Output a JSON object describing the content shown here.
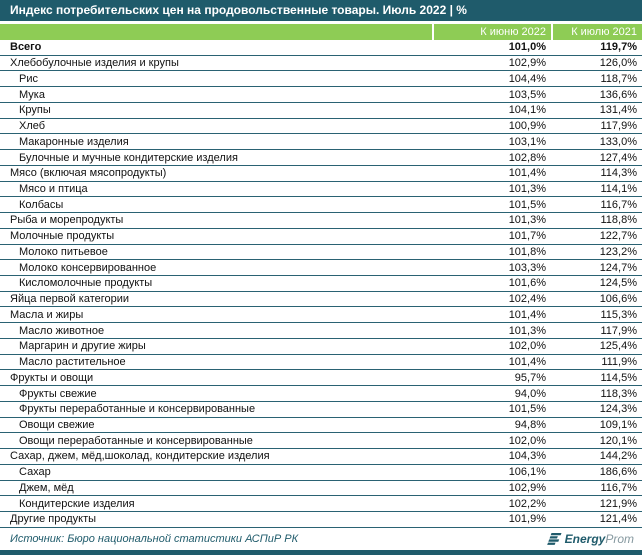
{
  "footer": {
    "source": "Источник: Бюро национальной статистики АСПиР РК",
    "logo_bold": "Energy",
    "logo_light": "Prom"
  },
  "colors": {
    "teal": "#1F5B6B",
    "green": "#8ECC55",
    "row_border": "#2A6273",
    "logo_light_text": "#85989F"
  },
  "chart_data": {
    "type": "table",
    "title": "Индекс потребительских цен на продовольственные товары. Июль 2022 | %",
    "columns": [
      "К июню 2022",
      "К июлю 2021"
    ],
    "rows": [
      {
        "label": "Всего",
        "to_june_2022": "101,0%",
        "to_july_2021": "119,7%",
        "indent": 0,
        "bold": true
      },
      {
        "label": "Хлебобулочные изделия и крупы",
        "to_june_2022": "102,9%",
        "to_july_2021": "126,0%",
        "indent": 0,
        "bold": false
      },
      {
        "label": "Рис",
        "to_june_2022": "104,4%",
        "to_july_2021": "118,7%",
        "indent": 1,
        "bold": false
      },
      {
        "label": "Мука",
        "to_june_2022": "103,5%",
        "to_july_2021": "136,6%",
        "indent": 1,
        "bold": false
      },
      {
        "label": "Крупы",
        "to_june_2022": "104,1%",
        "to_july_2021": "131,4%",
        "indent": 1,
        "bold": false
      },
      {
        "label": "Хлеб",
        "to_june_2022": "100,9%",
        "to_july_2021": "117,9%",
        "indent": 1,
        "bold": false
      },
      {
        "label": "Макаронные изделия",
        "to_june_2022": "103,1%",
        "to_july_2021": "133,0%",
        "indent": 1,
        "bold": false
      },
      {
        "label": "Булочные и мучные кондитерские изделия",
        "to_june_2022": "102,8%",
        "to_july_2021": "127,4%",
        "indent": 1,
        "bold": false
      },
      {
        "label": "Мясо (включая мясопродукты)",
        "to_june_2022": "101,4%",
        "to_july_2021": "114,3%",
        "indent": 0,
        "bold": false
      },
      {
        "label": "Мясо и птица",
        "to_june_2022": "101,3%",
        "to_july_2021": "114,1%",
        "indent": 1,
        "bold": false
      },
      {
        "label": "Колбасы",
        "to_june_2022": "101,5%",
        "to_july_2021": "116,7%",
        "indent": 1,
        "bold": false
      },
      {
        "label": "Рыба и морепродукты",
        "to_june_2022": "101,3%",
        "to_july_2021": "118,8%",
        "indent": 0,
        "bold": false
      },
      {
        "label": "Молочные продукты",
        "to_june_2022": "101,7%",
        "to_july_2021": "122,7%",
        "indent": 0,
        "bold": false
      },
      {
        "label": "Молоко питьевое",
        "to_june_2022": "101,8%",
        "to_july_2021": "123,2%",
        "indent": 1,
        "bold": false
      },
      {
        "label": "Молоко консервированное",
        "to_june_2022": "103,3%",
        "to_july_2021": "124,7%",
        "indent": 1,
        "bold": false
      },
      {
        "label": "Кисломолочные продукты",
        "to_june_2022": "101,6%",
        "to_july_2021": "124,5%",
        "indent": 1,
        "bold": false
      },
      {
        "label": "Яйца первой категории",
        "to_june_2022": "102,4%",
        "to_july_2021": "106,6%",
        "indent": 0,
        "bold": false
      },
      {
        "label": "Масла и жиры",
        "to_june_2022": "101,4%",
        "to_july_2021": "115,3%",
        "indent": 0,
        "bold": false
      },
      {
        "label": "Масло животное",
        "to_june_2022": "101,3%",
        "to_july_2021": "117,9%",
        "indent": 1,
        "bold": false
      },
      {
        "label": "Маргарин и другие жиры",
        "to_june_2022": "102,0%",
        "to_july_2021": "125,4%",
        "indent": 1,
        "bold": false
      },
      {
        "label": "Масло растительное",
        "to_june_2022": "101,4%",
        "to_july_2021": "111,9%",
        "indent": 1,
        "bold": false
      },
      {
        "label": "Фрукты и овощи",
        "to_june_2022": "95,7%",
        "to_july_2021": "114,5%",
        "indent": 0,
        "bold": false
      },
      {
        "label": "Фрукты свежие",
        "to_june_2022": "94,0%",
        "to_july_2021": "118,3%",
        "indent": 1,
        "bold": false
      },
      {
        "label": "Фрукты переработанные и консервированные",
        "to_june_2022": "101,5%",
        "to_july_2021": "124,3%",
        "indent": 1,
        "bold": false
      },
      {
        "label": "Овощи свежие",
        "to_june_2022": "94,8%",
        "to_july_2021": "109,1%",
        "indent": 1,
        "bold": false
      },
      {
        "label": "Овощи переработанные и консервированные",
        "to_june_2022": "102,0%",
        "to_july_2021": "120,1%",
        "indent": 1,
        "bold": false
      },
      {
        "label": "Сахар, джем, мёд,шоколад, кондитерские изделия",
        "to_june_2022": "104,3%",
        "to_july_2021": "144,2%",
        "indent": 0,
        "bold": false
      },
      {
        "label": "Сахар",
        "to_june_2022": "106,1%",
        "to_july_2021": "186,6%",
        "indent": 1,
        "bold": false
      },
      {
        "label": "Джем, мёд",
        "to_june_2022": "102,9%",
        "to_july_2021": "116,7%",
        "indent": 1,
        "bold": false
      },
      {
        "label": "Кондитерские изделия",
        "to_june_2022": "102,2%",
        "to_july_2021": "121,9%",
        "indent": 1,
        "bold": false
      },
      {
        "label": "Другие продукты",
        "to_june_2022": "101,9%",
        "to_july_2021": "121,4%",
        "indent": 0,
        "bold": false
      }
    ]
  }
}
